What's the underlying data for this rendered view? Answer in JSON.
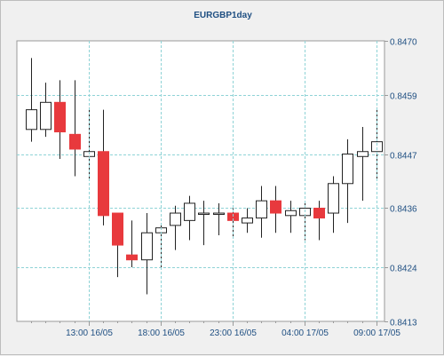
{
  "chart_data": {
    "type": "candlestick",
    "title": "EURGBP1day",
    "y_ticks": [
      "0.8413",
      "0.8424",
      "0.8436",
      "0.8447",
      "0.8459",
      "0.8470"
    ],
    "ylim": [
      0.8413,
      0.847
    ],
    "x_ticks": [
      "13:00 16/05",
      "18:00 16/05",
      "23:00 16/05",
      "04:00 17/05",
      "09:00 17/05"
    ],
    "colors": {
      "up": "#ffffff",
      "down": "#e8393d",
      "grid": "#8fd3d6",
      "axis": "#1f4f82"
    },
    "candles": [
      {
        "o": 0.8452,
        "h": 0.84665,
        "l": 0.84495,
        "c": 0.8456
      },
      {
        "o": 0.8452,
        "h": 0.84615,
        "l": 0.84505,
        "c": 0.84575
      },
      {
        "o": 0.84575,
        "h": 0.8462,
        "l": 0.8446,
        "c": 0.84515
      },
      {
        "o": 0.8451,
        "h": 0.8462,
        "l": 0.84425,
        "c": 0.8448
      },
      {
        "o": 0.84465,
        "h": 0.84565,
        "l": 0.84415,
        "c": 0.84475
      },
      {
        "o": 0.84475,
        "h": 0.8456,
        "l": 0.84325,
        "c": 0.84345
      },
      {
        "o": 0.8435,
        "h": 0.8435,
        "l": 0.8422,
        "c": 0.84285
      },
      {
        "o": 0.84265,
        "h": 0.84335,
        "l": 0.8424,
        "c": 0.84255
      },
      {
        "o": 0.84255,
        "h": 0.8435,
        "l": 0.84185,
        "c": 0.8431
      },
      {
        "o": 0.8431,
        "h": 0.8433,
        "l": 0.8424,
        "c": 0.8432
      },
      {
        "o": 0.84325,
        "h": 0.84365,
        "l": 0.84275,
        "c": 0.8435
      },
      {
        "o": 0.84335,
        "h": 0.84385,
        "l": 0.84295,
        "c": 0.8437
      },
      {
        "o": 0.8435,
        "h": 0.84375,
        "l": 0.84285,
        "c": 0.8435
      },
      {
        "o": 0.8435,
        "h": 0.8437,
        "l": 0.84305,
        "c": 0.8435
      },
      {
        "o": 0.8435,
        "h": 0.8436,
        "l": 0.843,
        "c": 0.84335
      },
      {
        "o": 0.8433,
        "h": 0.8436,
        "l": 0.8431,
        "c": 0.8434
      },
      {
        "o": 0.8434,
        "h": 0.84405,
        "l": 0.843,
        "c": 0.84375
      },
      {
        "o": 0.84375,
        "h": 0.84405,
        "l": 0.8431,
        "c": 0.8435
      },
      {
        "o": 0.84345,
        "h": 0.84375,
        "l": 0.8431,
        "c": 0.84355
      },
      {
        "o": 0.84345,
        "h": 0.84375,
        "l": 0.84295,
        "c": 0.8436
      },
      {
        "o": 0.8436,
        "h": 0.84375,
        "l": 0.84295,
        "c": 0.8434
      },
      {
        "o": 0.8435,
        "h": 0.84425,
        "l": 0.8431,
        "c": 0.8441
      },
      {
        "o": 0.8441,
        "h": 0.845,
        "l": 0.8433,
        "c": 0.8447
      },
      {
        "o": 0.84465,
        "h": 0.84525,
        "l": 0.84375,
        "c": 0.84475
      },
      {
        "o": 0.84475,
        "h": 0.84565,
        "l": 0.84415,
        "c": 0.84495
      }
    ]
  }
}
